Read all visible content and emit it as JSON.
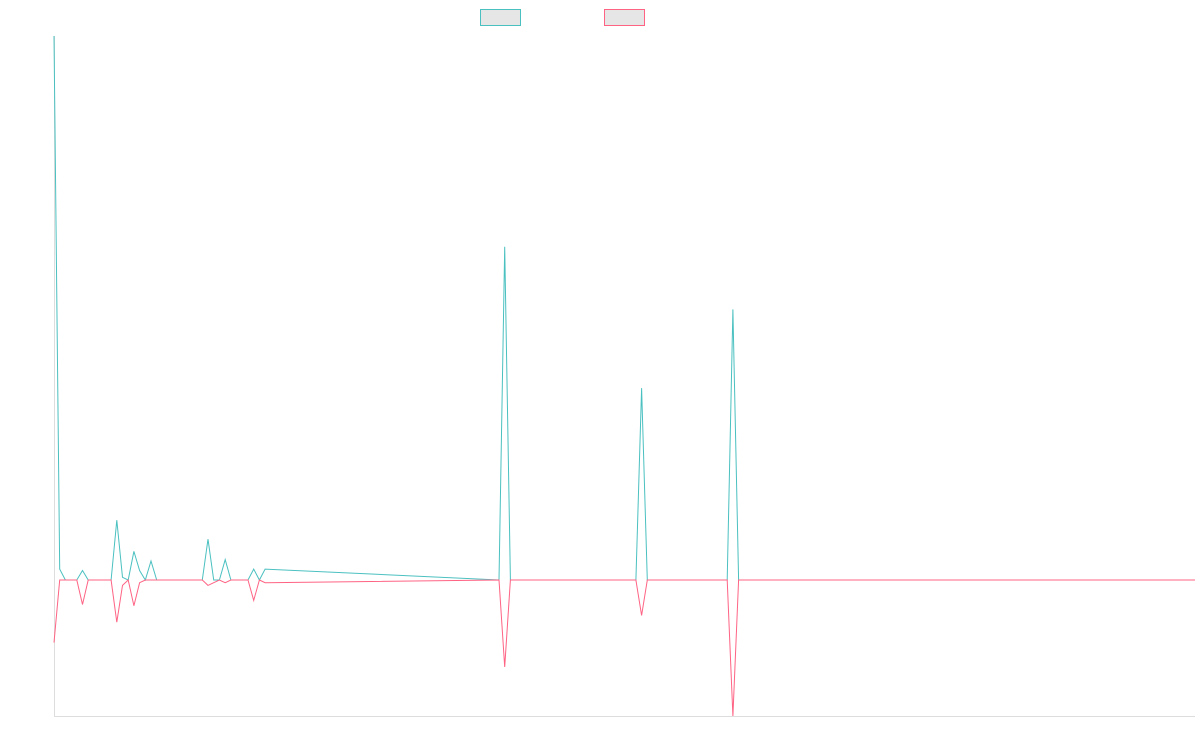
{
  "chart_data": {
    "type": "line",
    "title": "",
    "xlabel": "",
    "ylabel": "",
    "grid": false,
    "legend_position": "top-center",
    "ylim": [
      -1.0,
      4.0
    ],
    "xlim": [
      0,
      200
    ],
    "series": [
      {
        "color": "#4bc0c0",
        "x": [
          0,
          1,
          2,
          4,
          5,
          6,
          7,
          8,
          10,
          11,
          12,
          13,
          14,
          15,
          16,
          17,
          18,
          20,
          21,
          26,
          27,
          28,
          29,
          30,
          31,
          34,
          35,
          36,
          37,
          78,
          79,
          80,
          102,
          103,
          104,
          118,
          119,
          120,
          200
        ],
        "values": [
          4.0,
          0.08,
          0.0,
          0.0,
          0.07,
          0.0,
          0.0,
          0.0,
          0.0,
          0.44,
          0.02,
          0.0,
          0.21,
          0.07,
          0.0,
          0.14,
          0.0,
          0.0,
          0.0,
          0.0,
          0.3,
          0.0,
          0.0,
          0.15,
          0.0,
          0.0,
          0.08,
          0.0,
          0.08,
          0.0,
          2.45,
          0.0,
          0.0,
          1.41,
          0.0,
          0.0,
          1.99,
          0.0,
          0.0
        ]
      },
      {
        "color": "#ff6384",
        "x": [
          0,
          1,
          2,
          4,
          5,
          6,
          7,
          8,
          10,
          11,
          12,
          13,
          14,
          15,
          16,
          17,
          18,
          20,
          21,
          26,
          27,
          28,
          29,
          30,
          31,
          34,
          35,
          36,
          37,
          78,
          79,
          80,
          102,
          103,
          104,
          118,
          119,
          120,
          200
        ],
        "values": [
          -0.46,
          0.0,
          0.0,
          0.0,
          -0.18,
          0.0,
          0.0,
          0.0,
          0.0,
          -0.31,
          -0.04,
          0.0,
          -0.19,
          -0.02,
          0.0,
          0.0,
          0.0,
          0.0,
          0.0,
          0.0,
          -0.04,
          -0.02,
          0.0,
          -0.02,
          0.0,
          0.0,
          -0.15,
          0.0,
          -0.02,
          0.0,
          -0.64,
          0.0,
          0.0,
          -0.26,
          0.0,
          0.0,
          -1.0,
          0.0,
          0.0
        ]
      }
    ]
  }
}
